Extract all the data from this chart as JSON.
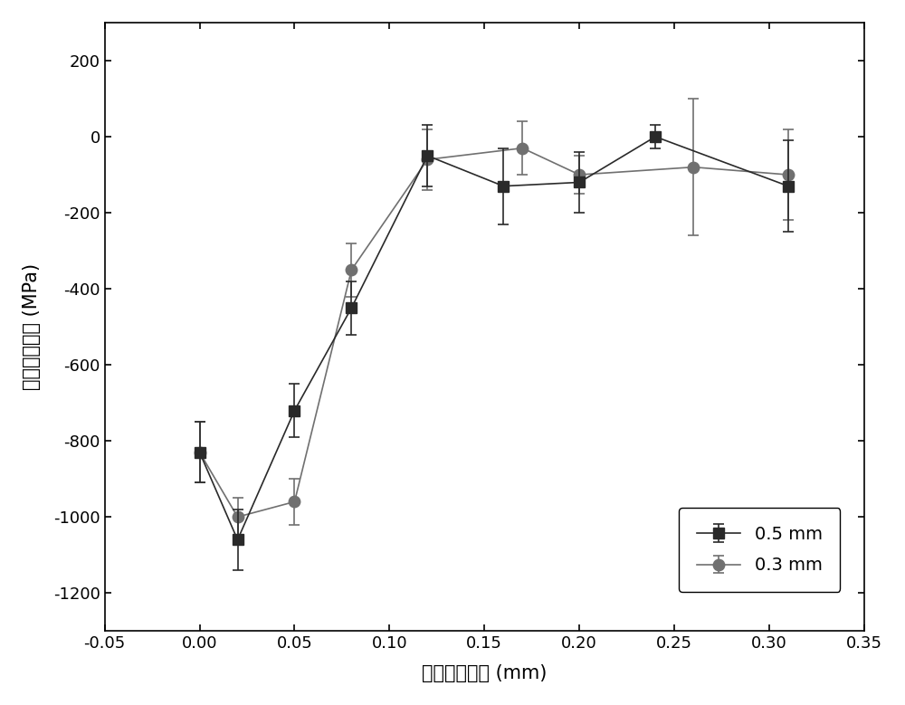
{
  "series_05mm": {
    "x": [
      0.0,
      0.02,
      0.05,
      0.08,
      0.12,
      0.16,
      0.2,
      0.24,
      0.31
    ],
    "y": [
      -830,
      -1060,
      -720,
      -450,
      -50,
      -130,
      -120,
      0,
      -130
    ],
    "yerr": [
      80,
      80,
      70,
      70,
      80,
      100,
      80,
      30,
      120
    ],
    "label": "0.5 mm",
    "color": "#2a2a2a",
    "marker": "s",
    "markersize": 8,
    "linewidth": 1.2
  },
  "series_03mm": {
    "x": [
      0.0,
      0.02,
      0.05,
      0.08,
      0.12,
      0.17,
      0.2,
      0.26,
      0.31
    ],
    "y": [
      -830,
      -1000,
      -960,
      -350,
      -60,
      -30,
      -100,
      -80,
      -100
    ],
    "yerr": [
      80,
      50,
      60,
      70,
      80,
      70,
      50,
      180,
      120
    ],
    "label": "0.3 mm",
    "color": "#707070",
    "marker": "o",
    "markersize": 9,
    "linewidth": 1.2
  },
  "xlabel": "距离表面深度 (mm)",
  "ylabel": "残余应力深度 (MPa)",
  "xlim": [
    -0.05,
    0.35
  ],
  "ylim": [
    -1300,
    300
  ],
  "xticks": [
    -0.05,
    0.0,
    0.05,
    0.1,
    0.15,
    0.2,
    0.25,
    0.3,
    0.35
  ],
  "yticks": [
    -1200,
    -1000,
    -800,
    -600,
    -400,
    -200,
    0,
    200
  ],
  "figsize": [
    10,
    7.79
  ],
  "dpi": 100
}
